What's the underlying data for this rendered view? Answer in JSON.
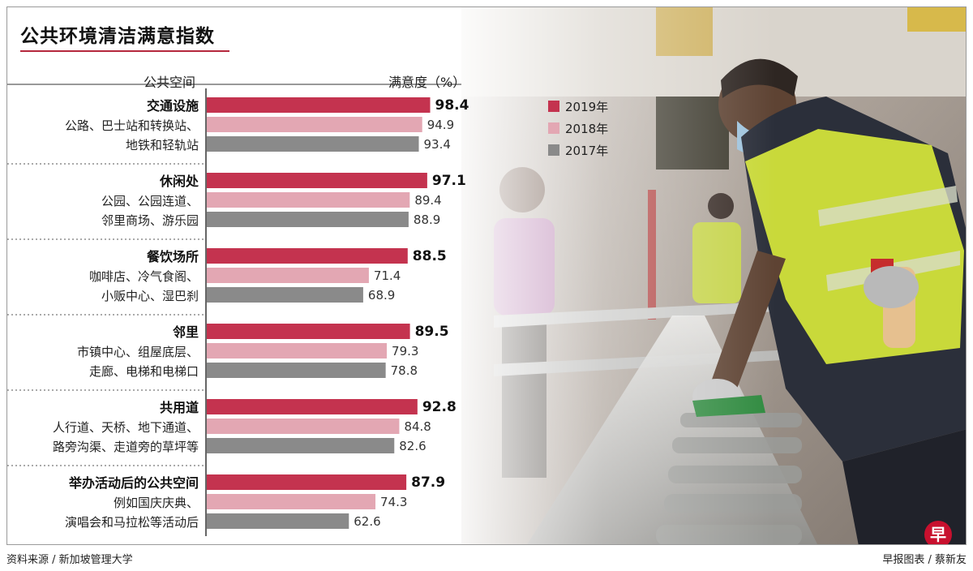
{
  "title": "公共环境清洁满意指数",
  "header": {
    "space_label": "公共空间",
    "satisfaction_label": "满意度（%）"
  },
  "footer": {
    "source": "资料来源 / 新加坡管理大学",
    "credit": "早报图表 / 蔡新友"
  },
  "logo_char": "早",
  "colors": {
    "y2019": "#c4334f",
    "y2018": "#e3a7b3",
    "y2017": "#8a8a8a",
    "accent": "#b5283d"
  },
  "chart_data": {
    "type": "bar",
    "orientation": "horizontal",
    "title": "公共环境清洁满意指数",
    "xlabel": "满意度（%）",
    "ylabel": "公共空间",
    "xlim": [
      0,
      100
    ],
    "legend": "top-right",
    "series": [
      {
        "name": "2019年",
        "values": [
          98.4,
          97.1,
          88.5,
          89.5,
          92.8,
          87.9
        ]
      },
      {
        "name": "2018年",
        "values": [
          94.9,
          89.4,
          71.4,
          79.3,
          84.8,
          74.3
        ]
      },
      {
        "name": "2017年",
        "values": [
          93.4,
          88.9,
          68.9,
          78.8,
          82.6,
          62.6
        ]
      }
    ],
    "categories": [
      {
        "label": "交通设施",
        "desc": [
          "公路、巴士站和转换站、",
          "地铁和轻轨站"
        ]
      },
      {
        "label": "休闲处",
        "desc": [
          "公园、公园连道、",
          "邻里商场、游乐园"
        ]
      },
      {
        "label": "餐饮场所",
        "desc": [
          "咖啡店、冷气食阁、",
          "小贩中心、湿巴刹"
        ]
      },
      {
        "label": "邻里",
        "desc": [
          "市镇中心、组屋底层、",
          "走廊、电梯和电梯口"
        ]
      },
      {
        "label": "共用道",
        "desc": [
          "人行道、天桥、地下通道、",
          "路旁沟渠、走道旁的草坪等"
        ]
      },
      {
        "label": "举办活动后的公共空间",
        "desc": [
          "例如国庆庆典、",
          "演唱会和马拉松等活动后"
        ]
      }
    ]
  }
}
